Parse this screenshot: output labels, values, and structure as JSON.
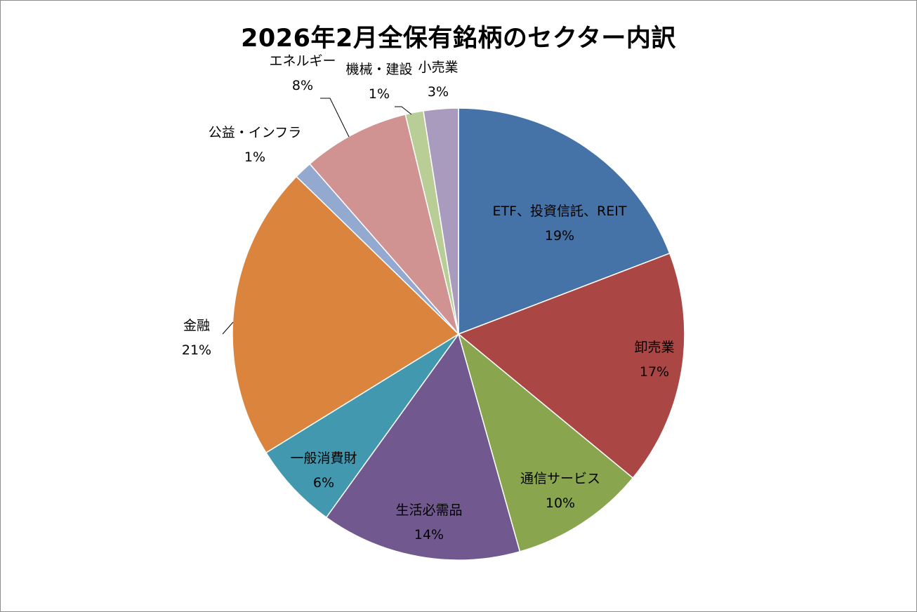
{
  "chart_data": {
    "type": "pie",
    "title": "2026年2月全保有銘柄のセクター内訳",
    "start_angle_deg": 0,
    "direction": "clockwise",
    "slices": [
      {
        "label": "ETF、投資信託、REIT",
        "value": 19.3,
        "value_label": "19%",
        "color": "#4572a7"
      },
      {
        "label": "卸売業",
        "value": 16.9,
        "value_label": "17%",
        "color": "#aa4643"
      },
      {
        "label": "通信サービス",
        "value": 9.7,
        "value_label": "10%",
        "color": "#89a54e"
      },
      {
        "label": "生活必需品",
        "value": 14.4,
        "value_label": "14%",
        "color": "#71588f"
      },
      {
        "label": "一般消費財",
        "value": 6.3,
        "value_label": "6%",
        "color": "#4198af"
      },
      {
        "label": "金融",
        "value": 21.2,
        "value_label": "21%",
        "color": "#db843d"
      },
      {
        "label": "公益・インフラ",
        "value": 1.3,
        "value_label": "1%",
        "color": "#93a9cf"
      },
      {
        "label": "エネルギー",
        "value": 7.7,
        "value_label": "8%",
        "color": "#d19392"
      },
      {
        "label": "機械・建設",
        "value": 1.3,
        "value_label": "1%",
        "color": "#b9cd96"
      },
      {
        "label": "小売業",
        "value": 2.5,
        "value_label": "3%",
        "color": "#a99bbd"
      }
    ]
  }
}
